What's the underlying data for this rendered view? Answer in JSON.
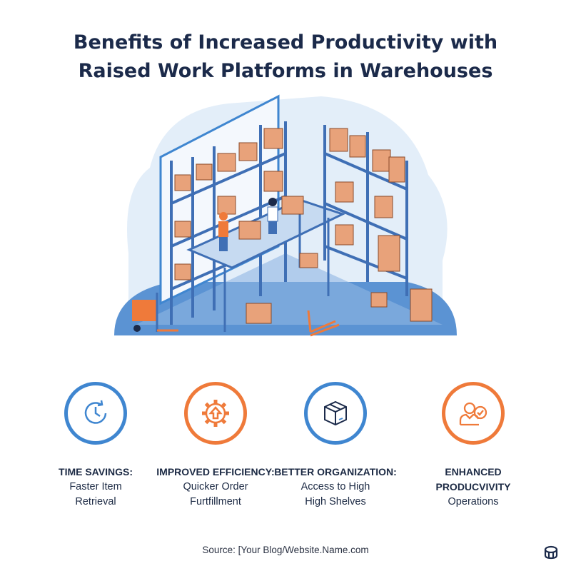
{
  "title_line1": "Benefits of Increased Productivity with",
  "title_line2": "Raised Work Platforms in Warehouses",
  "colors": {
    "blue": "#3f86d0",
    "orange": "#ef7a3a",
    "navy": "#1b2a4a",
    "box": "#e8a27a"
  },
  "benefits": [
    {
      "icon": "clock-icon",
      "color": "#3f86d0",
      "title": "TIME SAVINGS:",
      "line1": "Faster Item",
      "line2": "Retrieval"
    },
    {
      "icon": "gear-upload-icon",
      "color": "#ef7a3a",
      "title": "IMPROVED EFFICIENCY:",
      "line1": "Quicker Order",
      "line2": "Furtfillment"
    },
    {
      "icon": "box-icon",
      "color": "#3f86d0",
      "title": "BETTER ORGANIZATION:",
      "line1": "Access to High",
      "line2": "High Shelves"
    },
    {
      "icon": "worker-check-icon",
      "color": "#ef7a3a",
      "title": "ENHANCED",
      "title2": "PRODUCVIVITY",
      "line1": "Operations"
    }
  ],
  "source": "Source: [Your Blog/Website.Name.com",
  "logo_icon": "brand-logo-icon"
}
